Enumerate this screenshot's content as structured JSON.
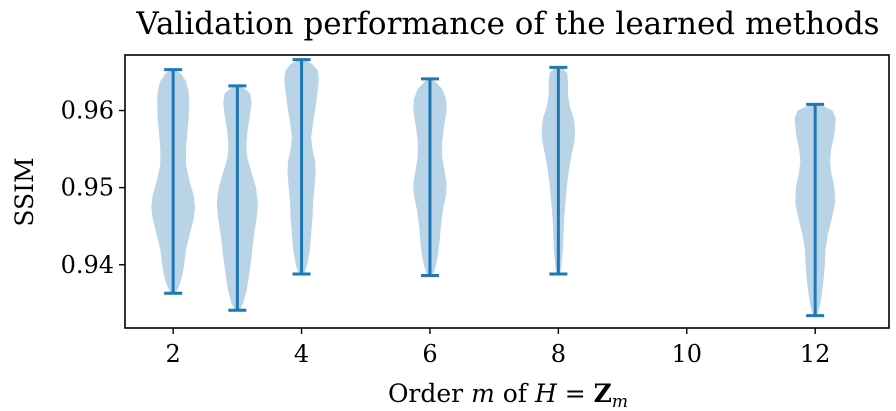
{
  "chart_data": {
    "type": "violin",
    "title": "Validation performance of the learned methods",
    "xlabel": "Order m of H = Z_m",
    "xlabel_parts": {
      "prefix": "Order ",
      "m": "m",
      "of": " of ",
      "H": "H",
      "eq": " = ",
      "Z": "Z",
      "sub": "m"
    },
    "ylabel": "SSIM",
    "xlim": [
      1.25,
      13.15
    ],
    "ylim": [
      0.9318,
      0.9672
    ],
    "xticks": [
      2,
      4,
      6,
      8,
      10,
      12
    ],
    "xtick_labels": [
      "2",
      "4",
      "6",
      "8",
      "10",
      "12"
    ],
    "yticks": [
      0.94,
      0.95,
      0.96
    ],
    "ytick_labels": [
      "0.94",
      "0.95",
      "0.96"
    ],
    "grid": false,
    "color": "#1f77b4",
    "fill_color": "#b9d3e7",
    "series": [
      {
        "x": 2,
        "min": 0.9363,
        "max": 0.9653,
        "profile": [
          [
            0.9363,
            0.04
          ],
          [
            0.9372,
            0.09
          ],
          [
            0.9385,
            0.14
          ],
          [
            0.94,
            0.17
          ],
          [
            0.942,
            0.2
          ],
          [
            0.944,
            0.26
          ],
          [
            0.946,
            0.32
          ],
          [
            0.9475,
            0.34
          ],
          [
            0.949,
            0.32
          ],
          [
            0.951,
            0.25
          ],
          [
            0.953,
            0.2
          ],
          [
            0.955,
            0.2
          ],
          [
            0.957,
            0.22
          ],
          [
            0.959,
            0.24
          ],
          [
            0.961,
            0.25
          ],
          [
            0.9625,
            0.24
          ],
          [
            0.9638,
            0.2
          ],
          [
            0.9648,
            0.12
          ],
          [
            0.9653,
            0.03
          ]
        ]
      },
      {
        "x": 3,
        "min": 0.9341,
        "max": 0.9632,
        "profile": [
          [
            0.9341,
            0.04
          ],
          [
            0.935,
            0.09
          ],
          [
            0.9365,
            0.14
          ],
          [
            0.9385,
            0.18
          ],
          [
            0.941,
            0.22
          ],
          [
            0.944,
            0.26
          ],
          [
            0.946,
            0.3
          ],
          [
            0.948,
            0.32
          ],
          [
            0.95,
            0.29
          ],
          [
            0.952,
            0.22
          ],
          [
            0.954,
            0.15
          ],
          [
            0.9555,
            0.14
          ],
          [
            0.9575,
            0.16
          ],
          [
            0.9595,
            0.2
          ],
          [
            0.961,
            0.22
          ],
          [
            0.9622,
            0.2
          ],
          [
            0.9628,
            0.12
          ],
          [
            0.9632,
            0.03
          ]
        ]
      },
      {
        "x": 4,
        "min": 0.9388,
        "max": 0.9666,
        "profile": [
          [
            0.9388,
            0.04
          ],
          [
            0.94,
            0.09
          ],
          [
            0.942,
            0.13
          ],
          [
            0.944,
            0.15
          ],
          [
            0.946,
            0.17
          ],
          [
            0.948,
            0.18
          ],
          [
            0.95,
            0.2
          ],
          [
            0.952,
            0.22
          ],
          [
            0.9535,
            0.21
          ],
          [
            0.955,
            0.17
          ],
          [
            0.9565,
            0.15
          ],
          [
            0.9585,
            0.18
          ],
          [
            0.9605,
            0.22
          ],
          [
            0.9625,
            0.25
          ],
          [
            0.964,
            0.27
          ],
          [
            0.9652,
            0.25
          ],
          [
            0.966,
            0.17
          ],
          [
            0.9666,
            0.04
          ]
        ]
      },
      {
        "x": 6,
        "min": 0.9386,
        "max": 0.9641,
        "profile": [
          [
            0.9386,
            0.04
          ],
          [
            0.9395,
            0.08
          ],
          [
            0.941,
            0.12
          ],
          [
            0.943,
            0.15
          ],
          [
            0.945,
            0.17
          ],
          [
            0.947,
            0.2
          ],
          [
            0.949,
            0.25
          ],
          [
            0.9505,
            0.26
          ],
          [
            0.952,
            0.23
          ],
          [
            0.954,
            0.19
          ],
          [
            0.956,
            0.19
          ],
          [
            0.958,
            0.22
          ],
          [
            0.96,
            0.26
          ],
          [
            0.9615,
            0.25
          ],
          [
            0.9628,
            0.19
          ],
          [
            0.9636,
            0.1
          ],
          [
            0.9641,
            0.03
          ]
        ]
      },
      {
        "x": 8,
        "min": 0.9388,
        "max": 0.9656,
        "profile": [
          [
            0.9388,
            0.03
          ],
          [
            0.94,
            0.05
          ],
          [
            0.942,
            0.07
          ],
          [
            0.944,
            0.08
          ],
          [
            0.946,
            0.09
          ],
          [
            0.948,
            0.11
          ],
          [
            0.95,
            0.13
          ],
          [
            0.952,
            0.16
          ],
          [
            0.954,
            0.2
          ],
          [
            0.956,
            0.25
          ],
          [
            0.9575,
            0.26
          ],
          [
            0.959,
            0.24
          ],
          [
            0.9605,
            0.18
          ],
          [
            0.962,
            0.15
          ],
          [
            0.9635,
            0.15
          ],
          [
            0.9648,
            0.14
          ],
          [
            0.9656,
            0.05
          ]
        ]
      },
      {
        "x": 12,
        "min": 0.9334,
        "max": 0.9608,
        "profile": [
          [
            0.9334,
            0.03
          ],
          [
            0.9345,
            0.07
          ],
          [
            0.936,
            0.1
          ],
          [
            0.938,
            0.13
          ],
          [
            0.94,
            0.15
          ],
          [
            0.942,
            0.16
          ],
          [
            0.944,
            0.2
          ],
          [
            0.946,
            0.26
          ],
          [
            0.948,
            0.31
          ],
          [
            0.95,
            0.3
          ],
          [
            0.952,
            0.25
          ],
          [
            0.9535,
            0.23
          ],
          [
            0.955,
            0.25
          ],
          [
            0.957,
            0.3
          ],
          [
            0.959,
            0.32
          ],
          [
            0.96,
            0.27
          ],
          [
            0.9605,
            0.14
          ],
          [
            0.9608,
            0.03
          ]
        ]
      }
    ]
  }
}
